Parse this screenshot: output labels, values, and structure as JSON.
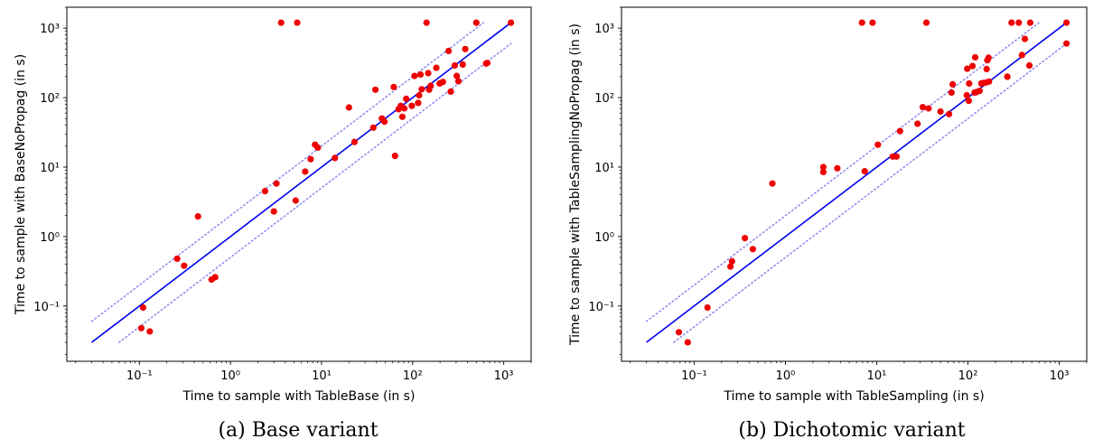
{
  "chart_data": [
    {
      "type": "scatter",
      "caption": "(a) Base variant",
      "xlabel": "Time to sample with TableBase (in s)",
      "ylabel": "Time to sample with BaseNoPropag (in s)",
      "xscale": "log",
      "yscale": "log",
      "xlim": [
        0.016,
        2000
      ],
      "ylim": [
        0.016,
        2000
      ],
      "xticks": [
        0.1,
        1,
        10,
        100,
        1000
      ],
      "yticks": [
        0.1,
        1,
        10,
        100,
        1000
      ],
      "tick_labels": [
        "10⁻¹",
        "10⁰",
        "10¹",
        "10²",
        "10³"
      ],
      "grid": false,
      "lines": [
        {
          "style": "solid",
          "color": "#0000ee",
          "x": [
            0.03,
            1200
          ],
          "y": [
            0.03,
            1200
          ]
        },
        {
          "style": "dotted",
          "color": "#8888ee",
          "x": [
            0.03,
            600
          ],
          "y": [
            0.06,
            1200
          ]
        },
        {
          "style": "dotted",
          "color": "#8888ee",
          "x": [
            0.06,
            1200
          ],
          "y": [
            0.03,
            600
          ]
        }
      ],
      "points": [
        [
          0.11,
          0.095
        ],
        [
          0.105,
          0.048
        ],
        [
          0.13,
          0.043
        ],
        [
          0.26,
          0.48
        ],
        [
          0.31,
          0.38
        ],
        [
          0.44,
          1.95
        ],
        [
          0.62,
          0.24
        ],
        [
          0.68,
          0.26
        ],
        [
          2.4,
          4.5
        ],
        [
          3.0,
          2.3
        ],
        [
          3.2,
          5.8
        ],
        [
          3.6,
          1200
        ],
        [
          5.4,
          1200
        ],
        [
          5.2,
          3.3
        ],
        [
          6.6,
          8.6
        ],
        [
          7.6,
          13
        ],
        [
          8.5,
          21
        ],
        [
          9.1,
          19
        ],
        [
          14,
          13.5
        ],
        [
          20,
          72
        ],
        [
          23,
          23
        ],
        [
          37,
          37
        ],
        [
          39,
          130
        ],
        [
          46,
          50
        ],
        [
          49,
          45
        ],
        [
          62,
          142
        ],
        [
          64,
          14.5
        ],
        [
          70,
          68
        ],
        [
          74,
          76
        ],
        [
          77,
          53
        ],
        [
          81,
          70
        ],
        [
          85,
          96
        ],
        [
          98,
          76
        ],
        [
          105,
          205
        ],
        [
          115,
          84
        ],
        [
          118,
          108
        ],
        [
          122,
          215
        ],
        [
          126,
          132
        ],
        [
          142,
          1200
        ],
        [
          148,
          225
        ],
        [
          152,
          130
        ],
        [
          158,
          148
        ],
        [
          182,
          268
        ],
        [
          198,
          160
        ],
        [
          215,
          168
        ],
        [
          248,
          470
        ],
        [
          262,
          122
        ],
        [
          290,
          290
        ],
        [
          305,
          205
        ],
        [
          318,
          172
        ],
        [
          355,
          300
        ],
        [
          378,
          500
        ],
        [
          500,
          1200
        ],
        [
          640,
          310
        ],
        [
          660,
          315
        ],
        [
          1200,
          1200
        ]
      ]
    },
    {
      "type": "scatter",
      "caption": "(b) Dichotomic variant",
      "xlabel": "Time to sample with TableSampling (in s)",
      "ylabel": "Time to sample with TableSamplingNoPropag (in s)",
      "xscale": "log",
      "yscale": "log",
      "xlim": [
        0.016,
        2000
      ],
      "ylim": [
        0.016,
        2000
      ],
      "xticks": [
        0.1,
        1,
        10,
        100,
        1000
      ],
      "yticks": [
        0.1,
        1,
        10,
        100,
        1000
      ],
      "tick_labels": [
        "10⁻¹",
        "10⁰",
        "10¹",
        "10²",
        "10³"
      ],
      "grid": false,
      "lines": [
        {
          "style": "solid",
          "color": "#0000ee",
          "x": [
            0.03,
            1200
          ],
          "y": [
            0.03,
            1200
          ]
        },
        {
          "style": "dotted",
          "color": "#8888ee",
          "x": [
            0.03,
            600
          ],
          "y": [
            0.06,
            1200
          ]
        },
        {
          "style": "dotted",
          "color": "#8888ee",
          "x": [
            0.06,
            1200
          ],
          "y": [
            0.03,
            600
          ]
        }
      ],
      "points": [
        [
          0.068,
          0.042
        ],
        [
          0.085,
          0.03
        ],
        [
          0.14,
          0.095
        ],
        [
          0.25,
          0.37
        ],
        [
          0.26,
          0.44
        ],
        [
          0.36,
          0.95
        ],
        [
          0.44,
          0.66
        ],
        [
          0.72,
          5.8
        ],
        [
          2.6,
          8.5
        ],
        [
          2.6,
          10
        ],
        [
          3.7,
          9.6
        ],
        [
          6.9,
          1200
        ],
        [
          9.0,
          1200
        ],
        [
          7.4,
          8.7
        ],
        [
          10.3,
          21
        ],
        [
          15,
          14.2
        ],
        [
          16.5,
          14.2
        ],
        [
          18,
          33
        ],
        [
          28,
          42
        ],
        [
          32,
          73
        ],
        [
          35,
          1200
        ],
        [
          37,
          70
        ],
        [
          50,
          63
        ],
        [
          62,
          58
        ],
        [
          66,
          118
        ],
        [
          68,
          155
        ],
        [
          97,
          108
        ],
        [
          98,
          260
        ],
        [
          102,
          90
        ],
        [
          103,
          160
        ],
        [
          112,
          285
        ],
        [
          118,
          118
        ],
        [
          120,
          380
        ],
        [
          124,
          120
        ],
        [
          134,
          125
        ],
        [
          140,
          160
        ],
        [
          148,
          162
        ],
        [
          158,
          165
        ],
        [
          160,
          258
        ],
        [
          163,
          345
        ],
        [
          168,
          375
        ],
        [
          170,
          170
        ],
        [
          270,
          200
        ],
        [
          300,
          1200
        ],
        [
          360,
          1200
        ],
        [
          390,
          410
        ],
        [
          420,
          700
        ],
        [
          480,
          1200
        ],
        [
          470,
          290
        ],
        [
          1200,
          1200
        ],
        [
          1200,
          600
        ]
      ]
    }
  ]
}
